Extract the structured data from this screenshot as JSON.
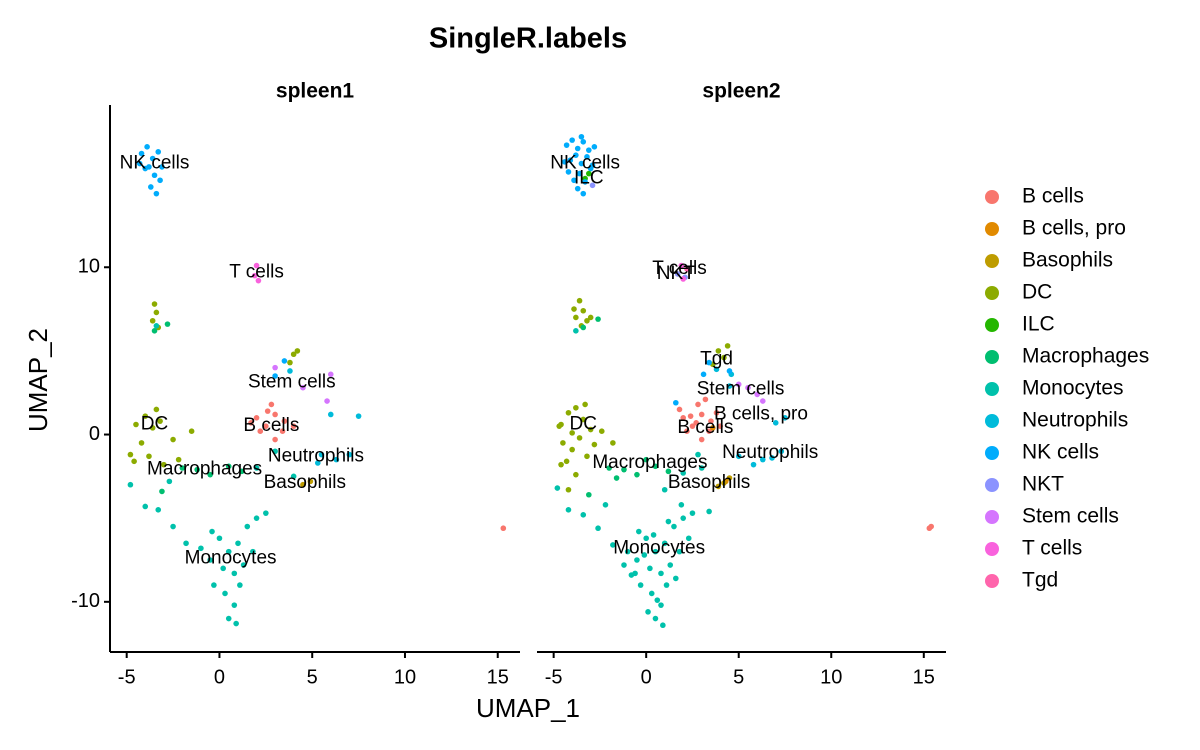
{
  "chart_data": {
    "type": "scatter",
    "title": "SingleR.labels",
    "xlabel": "UMAP_1",
    "ylabel": "UMAP_2",
    "facets": [
      "spleen1",
      "spleen2"
    ],
    "xlim": [
      -5.9,
      16.2
    ],
    "ylim": [
      -13,
      19.7
    ],
    "xticks": [
      -5,
      0,
      5,
      10,
      15
    ],
    "yticks": [
      -10,
      0,
      10
    ],
    "series": [
      {
        "name": "B cells",
        "color": "#F8766D",
        "panels": [
          {
            "x": [
              2,
              2.5,
              3,
              3.5,
              2.2,
              2.8,
              3.4,
              4,
              1.7,
              3,
              2.6,
              15.3
            ],
            "y": [
              1,
              0.5,
              1.2,
              0.8,
              0.2,
              1.8,
              0.2,
              0.5,
              0.7,
              -0.3,
              1.4,
              -5.6
            ]
          },
          {
            "x": [
              2,
              2.5,
              3,
              3.5,
              2.2,
              2.8,
              3.4,
              4,
              1.8,
              3,
              2.4,
              3.8,
              2.7,
              3.2,
              15.3,
              15.4
            ],
            "y": [
              1,
              0.5,
              1.2,
              0.8,
              0.2,
              1.8,
              0.2,
              0.5,
              1.5,
              -0.3,
              1.1,
              1.3,
              0.7,
              2.1,
              -5.6,
              -5.5
            ]
          }
        ]
      },
      {
        "name": "B cells, pro",
        "color": "#E18A00",
        "panels": [
          {
            "x": [],
            "y": []
          },
          {
            "x": [
              3.6,
              4.3
            ],
            "y": [
              0.4,
              -2.8
            ]
          }
        ]
      },
      {
        "name": "Basophils",
        "color": "#BE9C00",
        "panels": [
          {
            "x": [
              4.5,
              4.9
            ],
            "y": [
              -3.0,
              -2.8
            ]
          },
          {
            "x": [
              4.2,
              4.5,
              3.9
            ],
            "y": [
              -2.9,
              -2.6,
              -3.1
            ]
          }
        ]
      },
      {
        "name": "DC",
        "color": "#8CAB00",
        "panels": [
          {
            "x": [
              -3.5,
              -3.4,
              -3.6,
              -3.3,
              -4.5,
              -4,
              -3.6,
              -3.2,
              -4.2,
              -3.8,
              -4.6,
              -3,
              -2.5,
              -1.5,
              -2.2,
              4,
              4.2,
              3.8,
              -4.8,
              -3.4
            ],
            "y": [
              7.8,
              7.3,
              6.8,
              6.4,
              0.6,
              1.1,
              0.4,
              0.8,
              -0.5,
              -1.3,
              -1.6,
              -1.8,
              -0.3,
              0.2,
              -1.5,
              4.8,
              5,
              4.3,
              -1.2,
              1.5
            ]
          },
          {
            "x": [
              -3.6,
              -3.4,
              -3.8,
              -3.2,
              -3.5,
              -3.9,
              -3,
              -4.6,
              -4.2,
              -3.8,
              -3.4,
              -3,
              -4.5,
              -4,
              -3.6,
              -3.2,
              -4.3,
              -3.8,
              -4.6,
              -2.8,
              -2.4,
              -1.8,
              -4,
              -3.3,
              -4.7,
              -4.2,
              3.9,
              4.2,
              3.6,
              4.4
            ],
            "y": [
              8,
              7.4,
              7,
              6.8,
              6.5,
              7.5,
              7,
              0.6,
              1.3,
              1.6,
              0.9,
              0.3,
              -0.5,
              -0.9,
              -0.2,
              -1.3,
              -1.6,
              -2.4,
              -1.8,
              -0.6,
              0.2,
              -0.5,
              0.1,
              1.8,
              0.5,
              -3.3,
              5,
              4.6,
              4.2,
              5.3
            ]
          }
        ]
      },
      {
        "name": "ILC",
        "color": "#24B700",
        "panels": [
          {
            "x": [],
            "y": []
          },
          {
            "x": [
              -3.3,
              -3.1
            ],
            "y": [
              15.3,
              15.6
            ]
          }
        ]
      },
      {
        "name": "Macrophages",
        "color": "#00BE70",
        "panels": [
          {
            "x": [
              -3.5,
              -2.8,
              -1.2,
              -0.5,
              0.5,
              1.2,
              -2,
              -3.1
            ],
            "y": [
              6.2,
              6.6,
              -2.1,
              -2.4,
              -1.9,
              -2.2,
              -2,
              -3.4
            ]
          },
          {
            "x": [
              -3.4,
              -2.6,
              -1.2,
              -0.5,
              0.5,
              1.2,
              -2,
              -3.1,
              0,
              -1.6
            ],
            "y": [
              6.4,
              6.9,
              -2.1,
              -2.4,
              -1.9,
              -2.2,
              -2,
              -3.6,
              -1.5,
              -2.6
            ]
          }
        ]
      },
      {
        "name": "Monocytes",
        "color": "#00C1AB",
        "panels": [
          {
            "x": [
              -4.8,
              -4,
              -3.3,
              -2.5,
              -1.8,
              -1,
              -0.4,
              0,
              0.5,
              1,
              1.5,
              2,
              2.5,
              0.2,
              0.8,
              1.3,
              -0.3,
              0.3,
              0.8,
              0.5,
              1.1,
              -0.5,
              1.8,
              0.9,
              2,
              3,
              4,
              -3.4,
              -2.7
            ],
            "y": [
              -3,
              -4.3,
              -4.5,
              -5.5,
              -6.5,
              -6.8,
              -5.8,
              -6.2,
              -7,
              -6.5,
              -5.5,
              -5,
              -4.7,
              -8,
              -8.3,
              -7.8,
              -9,
              -9.5,
              -10.2,
              -11,
              -9,
              -7.5,
              -7,
              -11.3,
              -2,
              -1,
              -2.5,
              6.5,
              -2.8
            ]
          },
          {
            "x": [
              -4.8,
              -4.2,
              -3.4,
              -2.6,
              -1.8,
              -1,
              -0.4,
              0,
              0.5,
              1,
              1.5,
              2,
              2.5,
              0.2,
              0.8,
              1.3,
              -0.3,
              0.3,
              0.8,
              0.5,
              1.1,
              -0.5,
              1.8,
              0.9,
              -0.8,
              0.1,
              0.6,
              1.6,
              2.3,
              -1.2,
              0.4,
              1.2,
              -0.1,
              1.9,
              2.8,
              2,
              3,
              3.4,
              -2.2,
              -3.8,
              1,
              -0.6
            ],
            "y": [
              -3.2,
              -4.5,
              -4.8,
              -5.6,
              -6.6,
              -7,
              -5.8,
              -6.2,
              -7,
              -6.5,
              -5.5,
              -5,
              -4.7,
              -8,
              -8.3,
              -7.8,
              -9,
              -9.5,
              -10.2,
              -11,
              -9,
              -7.5,
              -7,
              -11.4,
              -8.4,
              -10.6,
              -9.9,
              -8.6,
              -6.2,
              -7.8,
              -6,
              -5.2,
              -7.2,
              -4.2,
              -1.2,
              -2.3,
              -2,
              -4.6,
              -4.2,
              6.2,
              -3.3,
              -8.3
            ]
          }
        ]
      },
      {
        "name": "Neutrophils",
        "color": "#00BBDA",
        "panels": [
          {
            "x": [
              5.5,
              6.3,
              7,
              6,
              7.5,
              5.3,
              3.8
            ],
            "y": [
              -1.2,
              -1.5,
              -1.2,
              1.2,
              1.1,
              -1.7,
              3.8
            ]
          },
          {
            "x": [
              5,
              6.3,
              7.3,
              7.5,
              7,
              3.8,
              4.6,
              5.8,
              6.8,
              4.5
            ],
            "y": [
              -1.3,
              -1.5,
              -1,
              1,
              0.7,
              3.9,
              3.6,
              -1.8,
              -1.4,
              2.9
            ]
          }
        ]
      },
      {
        "name": "NK cells",
        "color": "#00ACFC",
        "panels": [
          {
            "x": [
              -4.2,
              -3.9,
              -3.6,
              -3.3,
              -4,
              -3.5,
              -3.2,
              -3.7,
              -3.4,
              -4.3,
              -3.1,
              -3.8,
              3.5,
              3
            ],
            "y": [
              16.8,
              17.2,
              16.5,
              16.9,
              15.9,
              15.5,
              15.2,
              14.8,
              14.4,
              16.2,
              16,
              16,
              4.4,
              3.5
            ]
          },
          {
            "x": [
              -4.3,
              -4,
              -3.7,
              -3.4,
              -3.1,
              -4.1,
              -3.8,
              -3.5,
              -3.2,
              -2.9,
              -4.4,
              -3.6,
              -3.3,
              -3.9,
              -3.0,
              -3.7,
              -3.4,
              -3.5,
              -4.2,
              -2.8,
              3.4,
              3.1,
              4.5,
              1.6
            ],
            "y": [
              17.3,
              17.6,
              17.1,
              17.5,
              17,
              16.4,
              16.7,
              16.2,
              16.6,
              16.1,
              16.3,
              15.6,
              15.1,
              15.2,
              15.9,
              14.7,
              14.4,
              17.8,
              15.7,
              17.2,
              4.3,
              3.6,
              3.8,
              1.9
            ]
          }
        ]
      },
      {
        "name": "NKT",
        "color": "#8B93FF",
        "panels": [
          {
            "x": [],
            "y": []
          },
          {
            "x": [
              1.7,
              2.1,
              -2.9
            ],
            "y": [
              9.6,
              9.4,
              14.9
            ]
          }
        ]
      },
      {
        "name": "Stem cells",
        "color": "#D575FE",
        "panels": [
          {
            "x": [
              4.5,
              6,
              3,
              5.8
            ],
            "y": [
              2.8,
              3.6,
              4,
              2
            ]
          },
          {
            "x": [
              5,
              6,
              5.5,
              6.3
            ],
            "y": [
              3,
              2.4,
              2.8,
              2
            ]
          }
        ]
      },
      {
        "name": "T cells",
        "color": "#F962DD",
        "panels": [
          {
            "x": [
              2,
              1.9,
              2.1
            ],
            "y": [
              10.1,
              9.5,
              9.2
            ]
          },
          {
            "x": [
              1.9,
              2
            ],
            "y": [
              10.1,
              9.3
            ]
          }
        ]
      },
      {
        "name": "Tgd",
        "color": "#FF65AC",
        "panels": [
          {
            "x": [],
            "y": []
          },
          {
            "x": [
              2.2
            ],
            "y": [
              9.9
            ]
          }
        ]
      }
    ],
    "labels": [
      [
        {
          "text": "NK cells",
          "x": -3.5,
          "y": 16.2
        },
        {
          "text": "T cells",
          "x": 2,
          "y": 9.7
        },
        {
          "text": "Stem cells",
          "x": 3.9,
          "y": 3.1
        },
        {
          "text": "DC",
          "x": -3.5,
          "y": 0.6
        },
        {
          "text": "B cells",
          "x": 2.8,
          "y": 0.5
        },
        {
          "text": "Neutrophils",
          "x": 5.2,
          "y": -1.3
        },
        {
          "text": "Macrophages",
          "x": -0.8,
          "y": -2.1
        },
        {
          "text": "Basophils",
          "x": 4.6,
          "y": -2.9
        },
        {
          "text": "Monocytes",
          "x": 0.6,
          "y": -7.4
        }
      ],
      [
        {
          "text": "NK cells",
          "x": -3.3,
          "y": 16.2
        },
        {
          "text": "ILC",
          "x": -3.1,
          "y": 15.3
        },
        {
          "text": "T cells",
          "x": 1.8,
          "y": 9.9
        },
        {
          "text": "NKT",
          "x": 1.6,
          "y": 9.6
        },
        {
          "text": "Tgd",
          "x": 3.8,
          "y": 4.5
        },
        {
          "text": "Stem cells",
          "x": 5.1,
          "y": 2.7
        },
        {
          "text": "B cells, pro",
          "x": 6.2,
          "y": 1.2
        },
        {
          "text": "DC",
          "x": -3.4,
          "y": 0.6
        },
        {
          "text": "B cells",
          "x": 3.2,
          "y": 0.4
        },
        {
          "text": "Neutrophils",
          "x": 6.7,
          "y": -1.1
        },
        {
          "text": "Macrophages",
          "x": 0.2,
          "y": -1.7
        },
        {
          "text": "Basophils",
          "x": 3.4,
          "y": -2.9
        },
        {
          "text": "Monocytes",
          "x": 0.7,
          "y": -6.8
        }
      ]
    ]
  }
}
